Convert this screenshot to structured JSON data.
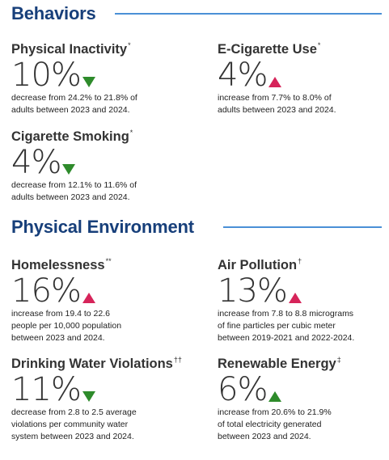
{
  "sections": {
    "behaviors": "Behaviors",
    "environment": "Physical Environment"
  },
  "colors": {
    "heading": "#173f7a",
    "rule": "#4a90d6",
    "decrease_arrow": "#2e8b2b",
    "increase_arrow_red": "#d6245a",
    "increase_arrow_green": "#2e8b2b"
  },
  "metrics": [
    {
      "title": "Physical Inactivity",
      "mark": "*",
      "value": "10%",
      "arrow": "down-green",
      "desc": [
        "decrease from 24.2% to 21.8% of",
        "adults between 2023 and 2024."
      ]
    },
    {
      "title": "E-Cigarette Use",
      "mark": "*",
      "value": "4%",
      "arrow": "up-red",
      "desc": [
        "increase from 7.7% to 8.0% of",
        "adults between 2023 and 2024."
      ]
    },
    {
      "title": "Cigarette Smoking",
      "mark": "*",
      "value": "4%",
      "arrow": "down-green",
      "desc": [
        "decrease from 12.1% to 11.6% of",
        "adults between 2023 and 2024."
      ]
    },
    {
      "title": "Homelessness",
      "mark": "**",
      "value": "16%",
      "arrow": "up-red",
      "desc": [
        "increase from 19.4 to 22.6",
        "people per 10,000 population",
        "between 2023 and 2024."
      ]
    },
    {
      "title": "Air Pollution",
      "mark": "†",
      "value": "13%",
      "arrow": "up-red",
      "desc": [
        "increase from 7.8 to 8.8 micrograms",
        "of fine particles per cubic meter",
        "between 2019-2021 and 2022-2024."
      ]
    },
    {
      "title": "Drinking Water Violations",
      "mark": "††",
      "value": "11%",
      "arrow": "down-green",
      "desc": [
        "decrease from 2.8 to 2.5 average",
        "violations per community water",
        "system between 2023 and 2024."
      ]
    },
    {
      "title": "Renewable Energy",
      "mark": "‡",
      "value": "6%",
      "arrow": "up-green",
      "desc": [
        "increase from 20.6% to 21.9%",
        "of total electricity generated",
        "between 2023 and 2024."
      ]
    }
  ]
}
